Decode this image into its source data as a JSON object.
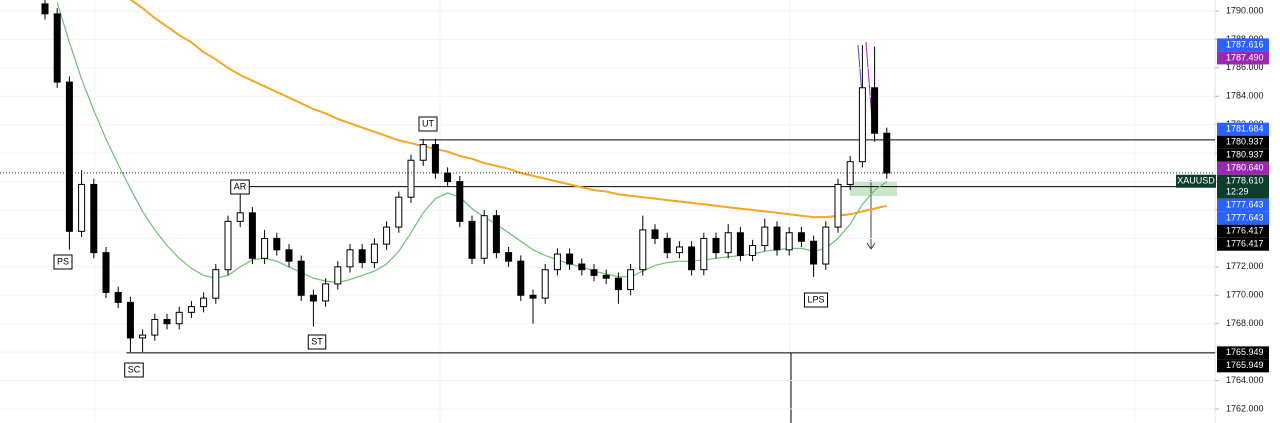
{
  "chart_data": {
    "type": "candlestick",
    "ylim": [
      1761.015,
      1790.774
    ],
    "yticks": [
      {
        "value": 1762,
        "label": "1762.000"
      },
      {
        "value": 1764,
        "label": "1764.000"
      },
      {
        "value": 1766,
        "label": "1766.000"
      },
      {
        "value": 1768,
        "label": "1768.000"
      },
      {
        "value": 1770,
        "label": "1770.000"
      },
      {
        "value": 1772,
        "label": "1772.000"
      },
      {
        "value": 1774,
        "label": "1774.000"
      },
      {
        "value": 1776,
        "label": "1776.000"
      },
      {
        "value": 1778,
        "label": "1778.000"
      },
      {
        "value": 1780,
        "label": "1780.000"
      },
      {
        "value": 1782,
        "label": "1782.000"
      },
      {
        "value": 1784,
        "label": "1784.000"
      },
      {
        "value": 1786,
        "label": "1786.000"
      },
      {
        "value": 1788,
        "label": "1788.000"
      },
      {
        "value": 1790,
        "label": "1790.000"
      }
    ],
    "grid": true,
    "up_color": "#ffffff",
    "down_color": "#000000",
    "open": [
      1790.5,
      1789.8,
      1785.0,
      1774.5,
      1777.8,
      1773.0,
      1770.2,
      1769.5,
      1767.0,
      1767.2,
      1768.3,
      1768.0,
      1768.8,
      1769.2,
      1769.8,
      1771.8,
      1775.2,
      1775.8,
      1772.6,
      1774.0,
      1773.2,
      1772.4,
      1770.0,
      1769.6,
      1770.8,
      1772.0,
      1773.2,
      1772.3,
      1773.6,
      1774.8,
      1776.9,
      1779.5,
      1780.6,
      1778.6,
      1778.0,
      1775.2,
      1772.6,
      1775.6,
      1773.0,
      1772.4,
      1770.0,
      1769.8,
      1771.8,
      1772.9,
      1772.2,
      1771.8,
      1771.4,
      1771.2,
      1770.4,
      1771.8,
      1774.6,
      1774.0,
      1773.0,
      1773.4,
      1771.8,
      1774.0,
      1773.0,
      1774.4,
      1772.8,
      1773.5,
      1774.8,
      1773.2,
      1774.4,
      1773.8,
      1772.2,
      1774.8,
      1777.8,
      1779.4,
      1784.6,
      1781.4
    ],
    "high": [
      1790.9,
      1790.2,
      1785.4,
      1778.8,
      1778.2,
      1773.4,
      1770.6,
      1769.9,
      1767.6,
      1768.7,
      1768.7,
      1769.2,
      1769.6,
      1770.2,
      1772.2,
      1775.6,
      1777.6,
      1776.2,
      1774.6,
      1774.4,
      1773.6,
      1772.8,
      1770.4,
      1771.2,
      1772.4,
      1773.6,
      1773.6,
      1774.0,
      1775.2,
      1777.3,
      1779.9,
      1781.0,
      1781.0,
      1779.0,
      1778.4,
      1775.6,
      1776.0,
      1776.0,
      1773.4,
      1772.8,
      1770.4,
      1772.2,
      1773.3,
      1773.3,
      1772.6,
      1772.2,
      1771.8,
      1771.6,
      1772.2,
      1775.6,
      1775.0,
      1774.4,
      1773.8,
      1773.8,
      1774.4,
      1774.4,
      1775.0,
      1774.8,
      1773.9,
      1775.4,
      1775.2,
      1774.8,
      1774.8,
      1774.2,
      1775.2,
      1778.2,
      1779.8,
      1787.6,
      1787.5,
      1781.8
    ],
    "low": [
      1789.4,
      1784.6,
      1773.2,
      1774.1,
      1772.6,
      1769.8,
      1769.1,
      1766.0,
      1766.0,
      1766.8,
      1767.6,
      1767.6,
      1768.4,
      1768.8,
      1769.4,
      1771.4,
      1774.8,
      1772.2,
      1772.2,
      1772.8,
      1772.0,
      1769.6,
      1767.8,
      1769.2,
      1770.4,
      1771.6,
      1771.9,
      1771.9,
      1773.2,
      1774.4,
      1776.5,
      1779.1,
      1778.2,
      1777.6,
      1774.8,
      1772.2,
      1772.2,
      1772.6,
      1772.0,
      1769.6,
      1768.0,
      1769.4,
      1771.4,
      1771.8,
      1771.4,
      1771.0,
      1770.8,
      1769.4,
      1770.0,
      1771.4,
      1773.6,
      1772.6,
      1772.6,
      1771.4,
      1771.4,
      1772.6,
      1772.6,
      1772.4,
      1772.4,
      1773.1,
      1772.8,
      1772.8,
      1773.4,
      1771.3,
      1771.8,
      1774.4,
      1777.4,
      1779.0,
      1780.8,
      1778.2
    ],
    "close": [
      1789.8,
      1785.0,
      1774.5,
      1777.8,
      1773.0,
      1770.2,
      1769.5,
      1767.0,
      1767.2,
      1768.3,
      1768.0,
      1768.8,
      1769.2,
      1769.8,
      1771.8,
      1775.2,
      1775.8,
      1772.6,
      1774.0,
      1773.2,
      1772.4,
      1770.0,
      1769.6,
      1770.8,
      1772.0,
      1773.2,
      1772.3,
      1773.6,
      1774.8,
      1776.9,
      1779.5,
      1780.6,
      1778.6,
      1778.0,
      1775.2,
      1772.6,
      1775.6,
      1773.0,
      1772.4,
      1770.0,
      1769.8,
      1771.8,
      1772.9,
      1772.2,
      1771.8,
      1771.4,
      1771.2,
      1770.4,
      1771.8,
      1774.6,
      1774.0,
      1773.0,
      1773.4,
      1771.8,
      1774.0,
      1773.0,
      1774.4,
      1772.8,
      1773.5,
      1774.8,
      1773.2,
      1774.4,
      1773.8,
      1772.2,
      1774.8,
      1777.8,
      1779.4,
      1784.6,
      1781.4,
      1778.6
    ],
    "series": [
      {
        "color": "#f5a623",
        "values": [
          null,
          null,
          null,
          null,
          null,
          null,
          null,
          1790.8,
          1790.2,
          1789.5,
          1788.9,
          1788.3,
          1787.8,
          1787.1,
          1786.6,
          1786.0,
          1785.5,
          1785.1,
          1784.7,
          1784.3,
          1783.9,
          1783.5,
          1783.1,
          1782.8,
          1782.4,
          1782.1,
          1781.8,
          1781.5,
          1781.2,
          1780.9,
          1780.7,
          1780.5,
          1780.3,
          1780.1,
          1779.8,
          1779.6,
          1779.3,
          1779.1,
          1778.9,
          1778.6,
          1778.4,
          1778.2,
          1778.0,
          1777.8,
          1777.6,
          1777.4,
          1777.3,
          1777.1,
          1777.0,
          1776.9,
          1776.8,
          1776.7,
          1776.6,
          1776.5,
          1776.4,
          1776.3,
          1776.2,
          1776.1,
          1776.0,
          1775.9,
          1775.8,
          1775.7,
          1775.6,
          1775.5,
          1775.5,
          1775.6,
          1775.7,
          1775.9,
          1776.1,
          1776.3
        ]
      },
      {
        "color": "#6fbf73",
        "values": [
          null,
          1790.6,
          1787.8,
          1785.2,
          1783.0,
          1781.0,
          1779.2,
          1777.5,
          1775.9,
          1774.6,
          1773.5,
          1772.6,
          1771.9,
          1771.4,
          1771.2,
          1771.4,
          1772.0,
          1772.5,
          1772.6,
          1772.4,
          1772.0,
          1771.6,
          1771.2,
          1771.0,
          1770.9,
          1771.1,
          1771.4,
          1771.7,
          1772.2,
          1773.1,
          1774.4,
          1775.8,
          1776.8,
          1777.2,
          1776.9,
          1776.1,
          1775.5,
          1775.0,
          1774.4,
          1773.8,
          1773.2,
          1772.8,
          1772.5,
          1772.2,
          1772.0,
          1771.7,
          1771.5,
          1771.3,
          1771.3,
          1771.7,
          1772.1,
          1772.3,
          1772.4,
          1772.4,
          1772.5,
          1772.6,
          1772.7,
          1772.8,
          1772.9,
          1773.1,
          1773.2,
          1773.3,
          1773.3,
          1773.1,
          1773.3,
          1774.0,
          1775.0,
          1776.4,
          1777.4,
          1778.0
        ]
      }
    ],
    "levels": [
      1780.937,
      1777.643,
      1765.949
    ],
    "annotations": [
      "PS",
      "SC",
      "AR",
      "ST",
      "UT",
      "LPS"
    ],
    "current": {
      "symbol": "XAUUSD",
      "value": 1778.61,
      "label": "1778.610",
      "countdown": "12:29",
      "color": "#0f3d2c"
    },
    "price_tags": [
      {
        "value": 1787.616,
        "label": "1787.616",
        "color": "#2962ff"
      },
      {
        "value": 1787.49,
        "label": "1787.490",
        "color": "#9c27b0"
      },
      {
        "value": 1781.684,
        "label": "1781.684",
        "color": "#2962ff"
      },
      {
        "value": 1780.937,
        "label": "1780.937",
        "color": "#000000"
      },
      {
        "value": 1780.937,
        "label": "1780.937",
        "color": "#000000"
      },
      {
        "value": 1780.64,
        "label": "1780.640",
        "color": "#9c27b0"
      },
      {
        "value": 1777.643,
        "label": "1777.643",
        "color": "#2962ff"
      },
      {
        "value": 1777.643,
        "label": "1777.643",
        "color": "#2962ff"
      },
      {
        "value": 1776.417,
        "label": "1776.417",
        "color": "#000000"
      },
      {
        "value": 1776.417,
        "label": "1776.417",
        "color": "#000000"
      },
      {
        "value": 1765.949,
        "label": "1765.949",
        "color": "#000000"
      },
      {
        "value": 1765.949,
        "label": "1765.949",
        "color": "#000000"
      }
    ]
  }
}
